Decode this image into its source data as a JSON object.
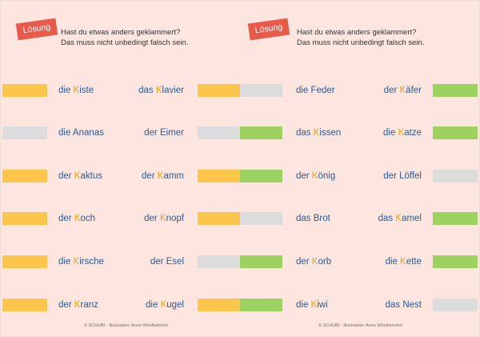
{
  "colors": {
    "yellow": "#fcc64c",
    "green": "#9dd160",
    "grey": "#dcdcdc",
    "highlight": "#e8a21a",
    "word": "#2a5a94",
    "tag": "#e85a4a"
  },
  "panels": [
    {
      "tag": "Lösung",
      "line1": "Hast du etwas anders geklammert?",
      "line2": "Das muss nicht unbedingt falsch sein.",
      "credit": "© SCHUBI · Illustration: Anne Wöstheinrich",
      "rows": [
        {
          "left_bar": "yellow",
          "a": {
            "pre": "die ",
            "hl": "K",
            "post": "iste"
          },
          "b": {
            "pre": "das ",
            "hl": "K",
            "post": "lavier"
          }
        },
        {
          "left_bar": "grey",
          "a": {
            "pre": "die Ananas",
            "hl": "",
            "post": ""
          },
          "b": {
            "pre": "der Eimer",
            "hl": "",
            "post": ""
          }
        },
        {
          "left_bar": "yellow",
          "a": {
            "pre": "der ",
            "hl": "K",
            "post": "aktus"
          },
          "b": {
            "pre": "der ",
            "hl": "K",
            "post": "amm"
          }
        },
        {
          "left_bar": "yellow",
          "a": {
            "pre": "der ",
            "hl": "K",
            "post": "och"
          },
          "b": {
            "pre": "der ",
            "hl": "K",
            "post": "nopf"
          }
        },
        {
          "left_bar": "yellow",
          "a": {
            "pre": "die ",
            "hl": "K",
            "post": "irsche"
          },
          "b": {
            "pre": "der Esel",
            "hl": "",
            "post": ""
          }
        },
        {
          "left_bar": "yellow",
          "a": {
            "pre": "der ",
            "hl": "K",
            "post": "ranz"
          },
          "b": {
            "pre": "die ",
            "hl": "K",
            "post": "ugel"
          }
        }
      ]
    },
    {
      "tag": "Lösung",
      "line1": "Hast du etwas anders geklammert?",
      "line2": "Das muss nicht unbedingt falsch sein.",
      "credit": "© SCHUBI · Illustration: Anne Wöstheinrich",
      "rows": [
        {
          "left_bar": [
            "yellow",
            "grey"
          ],
          "a": {
            "pre": "die Feder",
            "hl": "",
            "post": ""
          },
          "b": {
            "pre": "der ",
            "hl": "K",
            "post": "äfer"
          },
          "right_bar": "green"
        },
        {
          "left_bar": [
            "grey",
            "green"
          ],
          "a": {
            "pre": "das ",
            "hl": "K",
            "post": "issen"
          },
          "b": {
            "pre": "die ",
            "hl": "K",
            "post": "atze"
          },
          "right_bar": "green"
        },
        {
          "left_bar": [
            "yellow",
            "green"
          ],
          "a": {
            "pre": "der ",
            "hl": "K",
            "post": "önig"
          },
          "b": {
            "pre": "der Löffel",
            "hl": "",
            "post": ""
          },
          "right_bar": "grey"
        },
        {
          "left_bar": [
            "yellow",
            "grey"
          ],
          "a": {
            "pre": "das Brot",
            "hl": "",
            "post": ""
          },
          "b": {
            "pre": "das ",
            "hl": "K",
            "post": "amel"
          },
          "right_bar": "green"
        },
        {
          "left_bar": [
            "grey",
            "green"
          ],
          "a": {
            "pre": "der ",
            "hl": "K",
            "post": "orb"
          },
          "b": {
            "pre": "die ",
            "hl": "K",
            "post": "ette"
          },
          "right_bar": "green"
        },
        {
          "left_bar": [
            "yellow",
            "green"
          ],
          "a": {
            "pre": "die ",
            "hl": "K",
            "post": "iwi"
          },
          "b": {
            "pre": "das Nest",
            "hl": "",
            "post": ""
          },
          "right_bar": "grey"
        }
      ]
    }
  ]
}
